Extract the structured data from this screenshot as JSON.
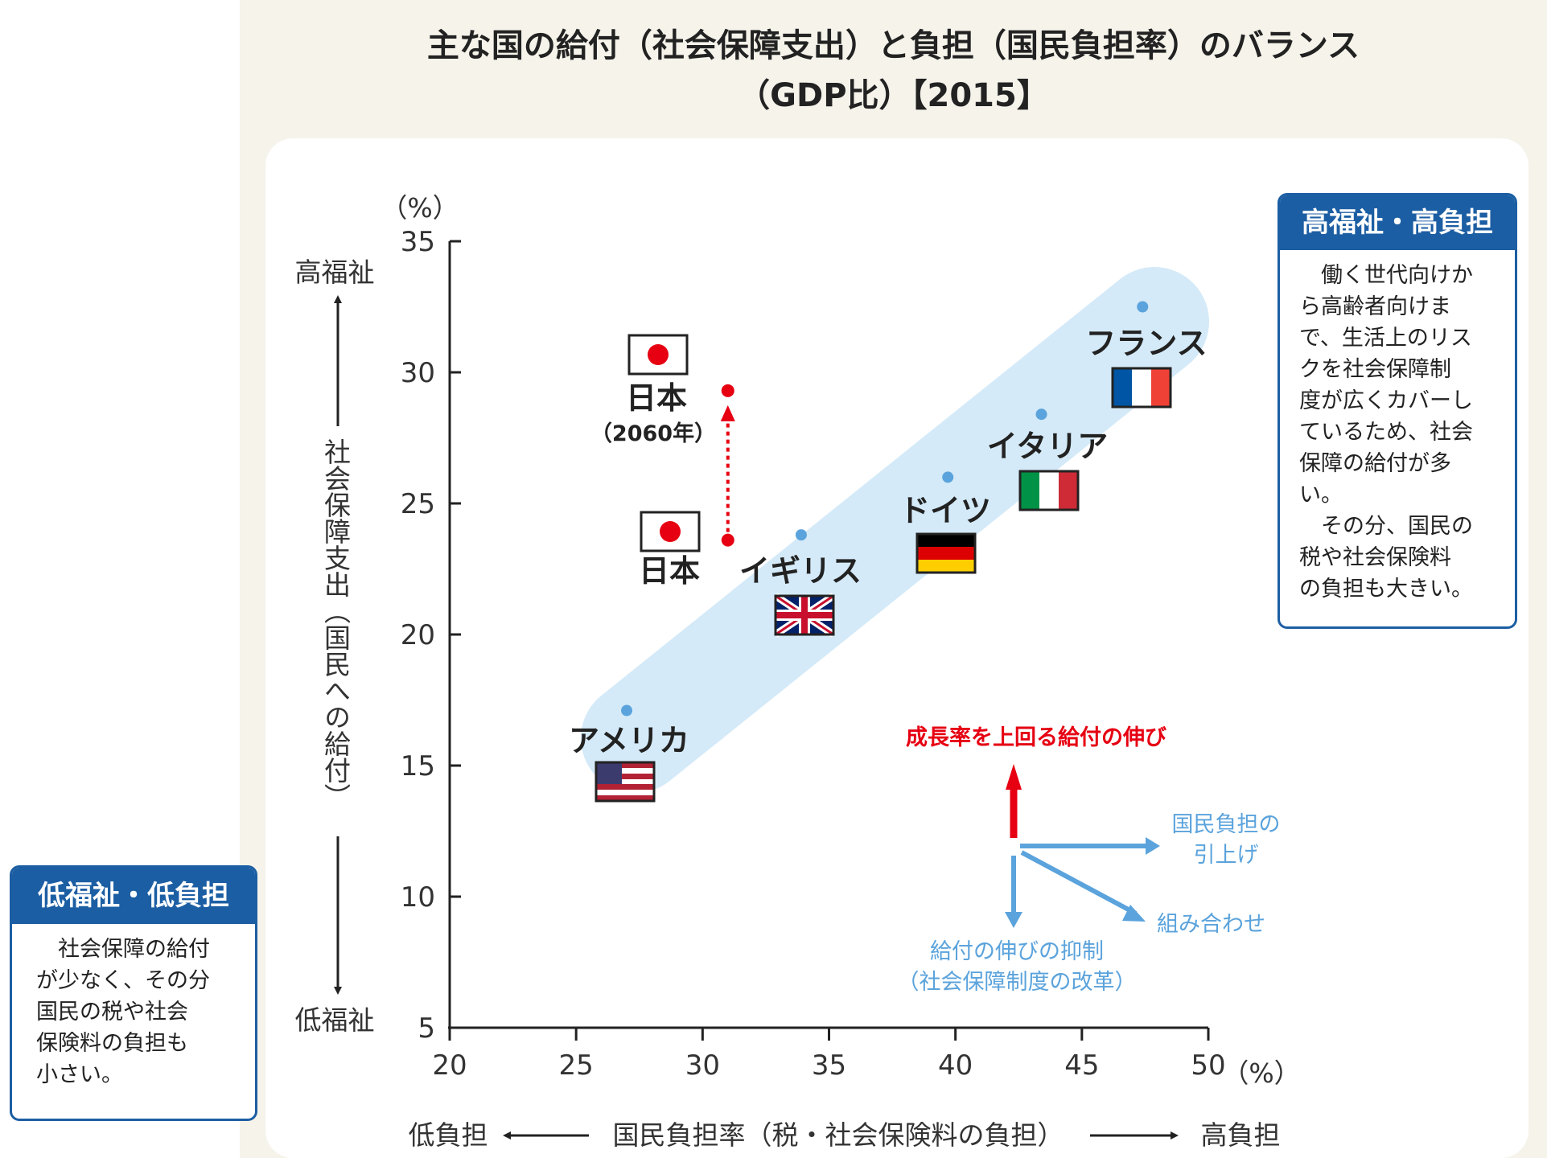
{
  "title_line1": "主な国の給付（社会保障支出）と負担（国民負担率）のバランス",
  "title_line2": "（GDP比）【2015】",
  "chart_data": {
    "type": "scatter",
    "title": "主な国の給付（社会保障支出）と負担（国民負担率）のバランス（GDP比）【2015】",
    "xlabel": "国民負担率（税・社会保険料の負担）",
    "ylabel": "社会保障支出（国民への給付）",
    "x_unit": "（%）",
    "y_unit": "（%）",
    "xlim": [
      20,
      50
    ],
    "ylim": [
      5,
      35
    ],
    "x_ticks": [
      "20",
      "25",
      "30",
      "35",
      "40",
      "45",
      "50"
    ],
    "y_ticks": [
      "5",
      "10",
      "15",
      "20",
      "25",
      "30",
      "35"
    ],
    "x_low_label": "低負担",
    "x_high_label": "高負担",
    "y_high_label": "高福祉",
    "y_low_label": "低福祉",
    "points": [
      {
        "name": "アメリカ",
        "x": 27.0,
        "y": 17.1,
        "color": "#5ba3dc",
        "flag": "us-flag"
      },
      {
        "name": "イギリス",
        "x": 33.9,
        "y": 23.8,
        "color": "#5ba3dc",
        "flag": "uk-flag"
      },
      {
        "name": "ドイツ",
        "x": 39.7,
        "y": 26.0,
        "color": "#5ba3dc",
        "flag": "germany-flag"
      },
      {
        "name": "イタリア",
        "x": 43.4,
        "y": 28.4,
        "color": "#5ba3dc",
        "flag": "italy-flag"
      },
      {
        "name": "フランス",
        "x": 47.4,
        "y": 32.5,
        "color": "#5ba3dc",
        "flag": "france-flag"
      },
      {
        "name": "日本",
        "x": 31.0,
        "y": 23.6,
        "color": "#e60012",
        "flag": "japan-flag"
      },
      {
        "name": "日本",
        "sublabel": "（2060年）",
        "x": 31.0,
        "y": 29.3,
        "color": "#e60012",
        "flag": "japan-flag"
      }
    ],
    "annotations": {
      "japan_projection_arrow": {
        "from_y": 23.6,
        "to_y": 29.3,
        "x": 31.0,
        "style": "dotted",
        "color": "#e60012"
      },
      "legend_growth": "成長率を上回る給付の伸び",
      "legend_burden_increase_line1": "国民負担の",
      "legend_burden_increase_line2": "引上げ",
      "legend_combination": "組み合わせ",
      "legend_restraint_line1": "給付の伸びの抑制",
      "legend_restraint_line2": "（社会保障制度の改革）"
    },
    "colors": {
      "red": "#e60012",
      "blue": "#5ba3dc",
      "blob": "#d4eaf8",
      "box_blue": "#1c5ea3"
    }
  },
  "box_high": {
    "title": "高福祉・高負担",
    "lines": [
      "　働く世代向けか",
      "ら高齢者向けま",
      "で、生活上のリス",
      "クを社会保障制",
      "度が広くカバーし",
      "ているため、社会",
      "保障の給付が多",
      "い。",
      "　その分、国民の",
      "税や社会保険料",
      "の負担も大きい。"
    ]
  },
  "box_low": {
    "title": "低福祉・低負担",
    "lines": [
      "　社会保障の給付",
      "が少なく、その分",
      "国民の税や社会",
      "保険料の負担も",
      "小さい。"
    ]
  }
}
